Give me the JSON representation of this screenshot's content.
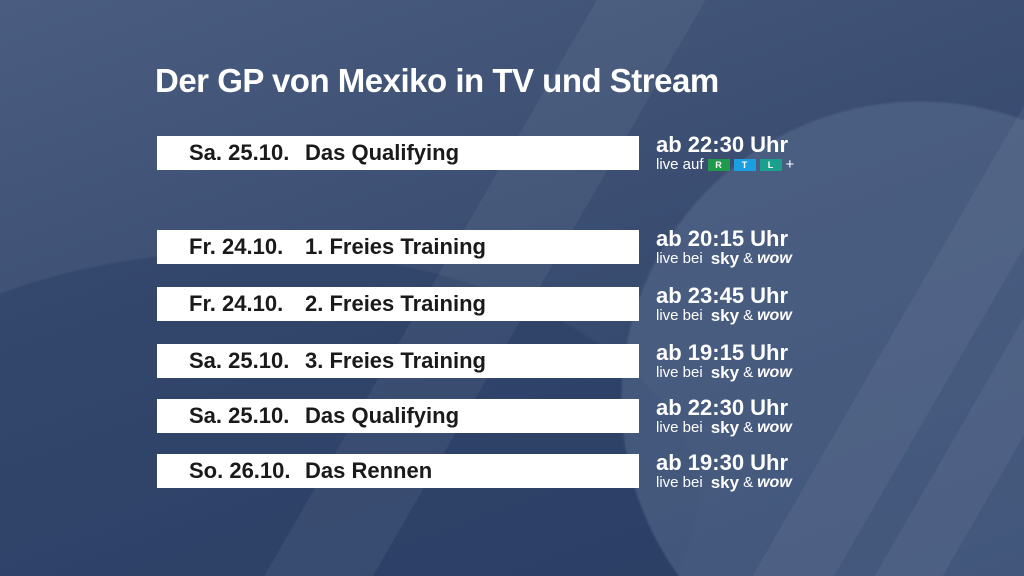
{
  "title": "Der GP von Mexiko in TV und Stream",
  "featured": {
    "date": "Sa. 25.10.",
    "event": "Das Qualifying",
    "time": "ab 22:30 Uhr",
    "live_prefix": "live auf",
    "broadcaster": [
      "R",
      "T",
      "L",
      "+"
    ]
  },
  "sessions": [
    {
      "date": "Fr. 24.10.",
      "event": "1. Freies Training",
      "time": "ab 20:15 Uhr"
    },
    {
      "date": "Fr. 24.10.",
      "event": "2. Freies Training",
      "time": "ab 23:45 Uhr"
    },
    {
      "date": "Sa. 25.10.",
      "event": "3. Freies Training",
      "time": "ab 19:15 Uhr"
    },
    {
      "date": "Sa. 25.10.",
      "event": "Das Qualifying",
      "time": "ab 22:30 Uhr"
    },
    {
      "date": "So. 26.10.",
      "event": "Das Rennen",
      "time": "ab 19:30 Uhr"
    }
  ],
  "sky_line": {
    "prefix": "live bei",
    "sky": "sky",
    "amp": "&",
    "wow": "wow"
  },
  "colors": {
    "rtl_r": "#1e9a4a",
    "rtl_t": "#1aa0e0",
    "rtl_l": "#1aa08c"
  }
}
